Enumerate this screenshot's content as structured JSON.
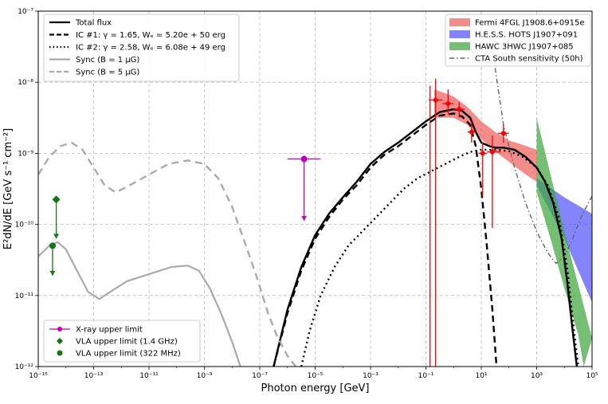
{
  "chart_data": {
    "type": "line",
    "xlabel": "Photon energy [GeV]",
    "ylabel": "E²dN/dE [GeV s⁻¹ cm⁻²]",
    "xscale": "log",
    "yscale": "log",
    "xlim": [
      1e-15,
      100000.0
    ],
    "ylim": [
      1e-12,
      1e-07
    ],
    "grid": true,
    "xticks": [
      {
        "v": -15,
        "label": "10⁻¹⁵"
      },
      {
        "v": -13,
        "label": "10⁻¹³"
      },
      {
        "v": -11,
        "label": "10⁻¹¹"
      },
      {
        "v": -9,
        "label": "10⁻⁹"
      },
      {
        "v": -7,
        "label": "10⁻⁷"
      },
      {
        "v": -5,
        "label": "10⁻⁵"
      },
      {
        "v": -3,
        "label": "10⁻³"
      },
      {
        "v": -1,
        "label": "10⁻¹"
      },
      {
        "v": 1,
        "label": "10¹"
      },
      {
        "v": 3,
        "label": "10³"
      },
      {
        "v": 5,
        "label": "10⁵"
      }
    ],
    "yticks": [
      {
        "v": -12,
        "label": "10⁻¹²"
      },
      {
        "v": -11,
        "label": "10⁻¹¹"
      },
      {
        "v": -10,
        "label": "10⁻¹⁰"
      },
      {
        "v": -9,
        "label": "10⁻⁹"
      },
      {
        "v": -8,
        "label": "10⁻⁸"
      },
      {
        "v": -7,
        "label": "10⁻⁷"
      }
    ],
    "lines": [
      {
        "name": "Total flux",
        "color": "#000000",
        "dash": "",
        "width": 2.4,
        "points": [
          [
            -6.5,
            -12.0
          ],
          [
            -6.0,
            -11.2
          ],
          [
            -5.5,
            -10.6
          ],
          [
            -5.0,
            -10.15
          ],
          [
            -4.5,
            -9.85
          ],
          [
            -4.0,
            -9.62
          ],
          [
            -3.5,
            -9.4
          ],
          [
            -3.0,
            -9.15
          ],
          [
            -2.5,
            -8.98
          ],
          [
            -2.0,
            -8.85
          ],
          [
            -1.5,
            -8.7
          ],
          [
            -1.0,
            -8.55
          ],
          [
            -0.5,
            -8.42
          ],
          [
            0.0,
            -8.38
          ],
          [
            0.3,
            -8.4
          ],
          [
            0.6,
            -8.5
          ],
          [
            0.8,
            -8.7
          ],
          [
            1.0,
            -8.85
          ],
          [
            1.3,
            -8.9
          ],
          [
            1.5,
            -8.92
          ],
          [
            1.8,
            -8.92
          ],
          [
            2.2,
            -8.95
          ],
          [
            2.6,
            -9.05
          ],
          [
            3.0,
            -9.2
          ],
          [
            3.3,
            -9.4
          ],
          [
            3.6,
            -9.7
          ],
          [
            3.9,
            -10.2
          ],
          [
            4.1,
            -10.8
          ],
          [
            4.3,
            -11.5
          ],
          [
            4.45,
            -12.0
          ]
        ]
      },
      {
        "name": "IC #1: γ = 1.65, Wₑ = 5.20e+50 erg",
        "color": "#000000",
        "dash": "8,5",
        "width": 2.4,
        "points": [
          [
            -6.5,
            -12.0
          ],
          [
            -6.0,
            -11.25
          ],
          [
            -5.5,
            -10.65
          ],
          [
            -5.0,
            -10.2
          ],
          [
            -4.5,
            -9.9
          ],
          [
            -4.0,
            -9.65
          ],
          [
            -3.5,
            -9.45
          ],
          [
            -3.0,
            -9.2
          ],
          [
            -2.5,
            -9.02
          ],
          [
            -2.0,
            -8.9
          ],
          [
            -1.5,
            -8.75
          ],
          [
            -1.0,
            -8.6
          ],
          [
            -0.5,
            -8.47
          ],
          [
            0.0,
            -8.44
          ],
          [
            0.3,
            -8.48
          ],
          [
            0.6,
            -8.6
          ],
          [
            0.8,
            -8.9
          ],
          [
            1.0,
            -9.5
          ],
          [
            1.2,
            -10.3
          ],
          [
            1.4,
            -11.2
          ],
          [
            1.55,
            -12.0
          ]
        ]
      },
      {
        "name": "IC #2: γ = 2.58, Wₑ = 6.08e+49 erg",
        "color": "#000000",
        "dash": "2,4",
        "width": 2.4,
        "points": [
          [
            -5.5,
            -12.0
          ],
          [
            -5.2,
            -11.5
          ],
          [
            -4.8,
            -11.0
          ],
          [
            -4.3,
            -10.6
          ],
          [
            -3.8,
            -10.3
          ],
          [
            -3.3,
            -10.1
          ],
          [
            -2.8,
            -9.9
          ],
          [
            -2.3,
            -9.7
          ],
          [
            -1.8,
            -9.5
          ],
          [
            -1.3,
            -9.35
          ],
          [
            -0.8,
            -9.25
          ],
          [
            -0.3,
            -9.15
          ],
          [
            0.2,
            -9.05
          ],
          [
            0.6,
            -8.98
          ],
          [
            1.0,
            -8.95
          ],
          [
            1.3,
            -8.95
          ],
          [
            1.6,
            -8.95
          ],
          [
            2.0,
            -8.97
          ],
          [
            2.5,
            -9.05
          ],
          [
            3.0,
            -9.2
          ],
          [
            3.4,
            -9.45
          ],
          [
            3.8,
            -9.9
          ],
          [
            4.1,
            -10.6
          ],
          [
            4.35,
            -11.5
          ],
          [
            4.5,
            -12.0
          ]
        ]
      },
      {
        "name": "Sync (B = 1 μG)",
        "color": "#aaaaaa",
        "dash": "",
        "width": 2.2,
        "points": [
          [
            -15.0,
            -10.45
          ],
          [
            -14.6,
            -10.3
          ],
          [
            -14.3,
            -10.25
          ],
          [
            -14.0,
            -10.35
          ],
          [
            -13.6,
            -10.65
          ],
          [
            -13.2,
            -10.95
          ],
          [
            -12.8,
            -11.05
          ],
          [
            -12.4,
            -10.95
          ],
          [
            -11.8,
            -10.8
          ],
          [
            -11.0,
            -10.7
          ],
          [
            -10.2,
            -10.6
          ],
          [
            -9.6,
            -10.58
          ],
          [
            -9.2,
            -10.65
          ],
          [
            -8.8,
            -10.9
          ],
          [
            -8.4,
            -11.25
          ],
          [
            -8.0,
            -11.65
          ],
          [
            -7.7,
            -12.0
          ]
        ]
      },
      {
        "name": "Sync (B = 5 μG)",
        "color": "#aaaaaa",
        "dash": "9,6",
        "width": 2.4,
        "points": [
          [
            -15.0,
            -9.3
          ],
          [
            -14.6,
            -9.05
          ],
          [
            -14.2,
            -8.9
          ],
          [
            -13.8,
            -8.85
          ],
          [
            -13.4,
            -8.95
          ],
          [
            -13.0,
            -9.2
          ],
          [
            -12.6,
            -9.45
          ],
          [
            -12.2,
            -9.55
          ],
          [
            -11.7,
            -9.45
          ],
          [
            -11.0,
            -9.3
          ],
          [
            -10.3,
            -9.15
          ],
          [
            -9.6,
            -9.1
          ],
          [
            -9.0,
            -9.15
          ],
          [
            -8.5,
            -9.35
          ],
          [
            -8.0,
            -9.75
          ],
          [
            -7.5,
            -10.3
          ],
          [
            -7.1,
            -10.75
          ],
          [
            -6.7,
            -11.25
          ],
          [
            -6.4,
            -11.55
          ],
          [
            -6.0,
            -11.85
          ],
          [
            -5.7,
            -12.0
          ]
        ]
      },
      {
        "name": "CTA South sensitivity (50h)",
        "color": "#666666",
        "dash": "6,3,1.5,3",
        "width": 1.4,
        "points": [
          [
            1.5,
            -7.8
          ],
          [
            1.8,
            -8.6
          ],
          [
            2.2,
            -9.2
          ],
          [
            2.6,
            -9.7
          ],
          [
            3.0,
            -10.1
          ],
          [
            3.4,
            -10.4
          ],
          [
            3.7,
            -10.55
          ],
          [
            4.0,
            -10.45
          ],
          [
            4.3,
            -10.2
          ],
          [
            4.6,
            -9.9
          ],
          [
            5.0,
            -9.6
          ]
        ]
      }
    ],
    "bands": [
      {
        "name": "Fermi 4FGL J1908.6+0915e",
        "color": "#f06060",
        "upper": [
          [
            -0.7,
            -8.1
          ],
          [
            0.0,
            -8.2
          ],
          [
            0.5,
            -8.35
          ],
          [
            1.0,
            -8.55
          ],
          [
            1.5,
            -8.7
          ],
          [
            2.0,
            -8.82
          ],
          [
            2.5,
            -8.88
          ],
          [
            3.0,
            -8.95
          ]
        ],
        "lower": [
          [
            -0.7,
            -8.5
          ],
          [
            0.0,
            -8.5
          ],
          [
            0.5,
            -8.6
          ],
          [
            1.0,
            -8.8
          ],
          [
            1.5,
            -8.97
          ],
          [
            2.0,
            -9.12
          ],
          [
            2.5,
            -9.27
          ],
          [
            3.0,
            -9.4
          ]
        ]
      },
      {
        "name": "H.E.S.S. HOTS J1907+091",
        "color": "#5555ff",
        "upper": [
          [
            3.0,
            -9.35
          ],
          [
            4.0,
            -9.62
          ],
          [
            5.0,
            -9.85
          ]
        ],
        "lower": [
          [
            3.0,
            -9.45
          ],
          [
            4.0,
            -10.2
          ],
          [
            5.0,
            -11.1
          ]
        ]
      },
      {
        "name": "HAWC 3HWC J1907+085",
        "color": "#3ea63e",
        "upper": [
          [
            3.0,
            -8.5
          ],
          [
            3.5,
            -9.3
          ],
          [
            4.0,
            -10.1
          ],
          [
            4.5,
            -10.85
          ],
          [
            5.0,
            -11.6
          ]
        ],
        "lower": [
          [
            3.0,
            -9.55
          ],
          [
            3.5,
            -10.2
          ],
          [
            4.0,
            -10.9
          ],
          [
            4.5,
            -11.55
          ],
          [
            4.7,
            -12.0
          ]
        ]
      }
    ],
    "fermi_points": {
      "color": "#ff0000",
      "points": [
        {
          "x": -0.85,
          "y": -100,
          "ylo": -12.0,
          "yhi": -8.05
        },
        {
          "x": -0.65,
          "y": -8.25,
          "ylo": -12.0,
          "yhi": -7.95,
          "xlo": -0.9,
          "xhi": -0.4
        },
        {
          "x": -0.2,
          "y": -8.3,
          "ylo": -8.45,
          "yhi": -8.1,
          "xlo": -0.4,
          "xhi": 0.0
        },
        {
          "x": 0.2,
          "y": -8.38,
          "ylo": -8.5,
          "yhi": -8.28,
          "xlo": 0.0,
          "xhi": 0.4
        },
        {
          "x": 0.65,
          "y": -8.7,
          "ylo": -8.85,
          "yhi": -8.55,
          "xlo": 0.5,
          "xhi": 0.8
        },
        {
          "x": 1.05,
          "y": -9.0,
          "ylo": -9.6,
          "yhi": -8.85,
          "xlo": 0.9,
          "xhi": 1.2
        },
        {
          "x": 1.4,
          "y": -8.98,
          "ylo": -10.05,
          "yhi": -8.75,
          "xlo": 1.2,
          "xhi": 1.7
        },
        {
          "x": 1.8,
          "y": -8.72,
          "ylo": -8.85,
          "yhi": -8.6,
          "xlo": 1.6,
          "xhi": 2.0
        }
      ]
    },
    "xray_limit": {
      "name": "X-ray upper limit",
      "color": "#bb00bb",
      "x": -5.4,
      "y": -9.08,
      "xlo": -6.0,
      "xhi": -4.8,
      "ylo": -9.95
    },
    "vla_limits": [
      {
        "name": "VLA upper limit (1.4 GHz)",
        "color": "#117711",
        "marker": "diamond",
        "x": -14.35,
        "y": -9.65,
        "ylo": -10.2
      },
      {
        "name": "VLA upper limit (322 MHz)",
        "color": "#117711",
        "marker": "circle",
        "x": -15.0,
        "y": -10.3,
        "ylo": -10.72
      }
    ],
    "legend_top_left": [
      {
        "label": "Total flux",
        "style": "solid-black"
      },
      {
        "label": "IC #1: γ = 1.65, Wₑ = 5.20e + 50 erg",
        "style": "dash-black"
      },
      {
        "label": "IC #2: γ = 2.58, Wₑ = 6.08e + 49 erg",
        "style": "dot-black"
      },
      {
        "label": "Sync (B = 1 μG)",
        "style": "solid-gray"
      },
      {
        "label": "Sync (B = 5 μG)",
        "style": "dash-gray"
      }
    ],
    "legend_top_right": [
      {
        "label": "Fermi 4FGL J1908.6+0915e",
        "color": "#f06060"
      },
      {
        "label": "H.E.S.S. HOTS J1907+091",
        "color": "#5555ff"
      },
      {
        "label": "HAWC 3HWC J1907+085",
        "color": "#3ea63e"
      },
      {
        "label": "CTA South sensitivity (50h)",
        "color": "#666666"
      }
    ],
    "legend_bottom_left": [
      {
        "label": "X-ray upper limit",
        "color": "#bb00bb"
      },
      {
        "label": "VLA upper limit (1.4 GHz)",
        "color": "#117711"
      },
      {
        "label": "VLA upper limit (322 MHz)",
        "color": "#117711"
      }
    ]
  }
}
